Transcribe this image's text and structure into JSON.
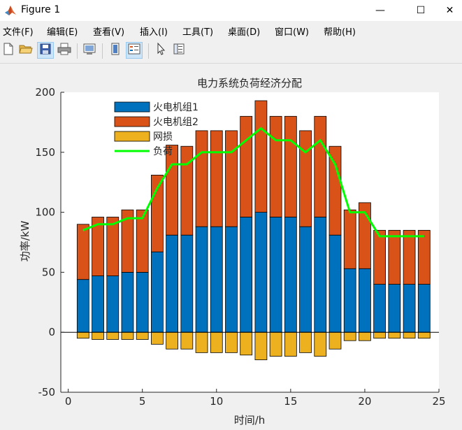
{
  "window": {
    "title": "Figure 1",
    "minimize": "—",
    "maximize": "☐",
    "close": "✕"
  },
  "menu": [
    "文件(F)",
    "编辑(E)",
    "查看(V)",
    "插入(I)",
    "工具(T)",
    "桌面(D)",
    "窗口(W)",
    "帮助(H)"
  ],
  "toolbar": {
    "icons": [
      "new-figure-icon",
      "open-file-icon",
      "save-icon",
      "print-icon",
      "print-preview-icon",
      "colorbar-icon",
      "legend-icon",
      "pointer-icon",
      "property-inspector-icon"
    ]
  },
  "chart_data": {
    "type": "bar",
    "title": "电力系统负荷经济分配",
    "xlabel": "时间/h",
    "ylabel": "功率/kW",
    "xlim": [
      -0.5,
      25
    ],
    "ylim": [
      -50,
      200
    ],
    "xticks": [
      0,
      5,
      10,
      15,
      20,
      25
    ],
    "yticks": [
      -50,
      0,
      50,
      100,
      150,
      200
    ],
    "x": [
      1,
      2,
      3,
      4,
      5,
      6,
      7,
      8,
      9,
      10,
      11,
      12,
      13,
      14,
      15,
      16,
      17,
      18,
      19,
      20,
      21,
      22,
      23,
      24
    ],
    "stacked": true,
    "legend_position": "top-left",
    "series": [
      {
        "name": "火电机组1",
        "type": "bar",
        "color": "#0072bd",
        "values": [
          44,
          47,
          47,
          50,
          50,
          67,
          81,
          81,
          88,
          88,
          88,
          96,
          100,
          96,
          96,
          88,
          96,
          81,
          53,
          53,
          40,
          40,
          40,
          40
        ]
      },
      {
        "name": "火电机组2",
        "type": "bar",
        "color": "#d95319",
        "values": [
          46,
          49,
          49,
          52,
          52,
          64,
          75,
          74,
          80,
          80,
          80,
          84,
          93,
          84,
          84,
          80,
          84,
          74,
          49,
          55,
          45,
          45,
          45,
          45
        ]
      },
      {
        "name": "网损",
        "type": "bar",
        "color": "#edb120",
        "values": [
          -5,
          -6,
          -6,
          -6,
          -6,
          -10,
          -14,
          -14,
          -17,
          -17,
          -17,
          -19,
          -23,
          -20,
          -20,
          -17,
          -20,
          -14,
          -7,
          -7,
          -5,
          -5,
          -5,
          -5
        ]
      },
      {
        "name": "负荷",
        "type": "line",
        "color": "#00ff00",
        "values": [
          85,
          90,
          90,
          95,
          95,
          120,
          140,
          140,
          150,
          150,
          150,
          160,
          170,
          160,
          160,
          150,
          160,
          140,
          100,
          100,
          80,
          80,
          80,
          80
        ]
      }
    ]
  }
}
